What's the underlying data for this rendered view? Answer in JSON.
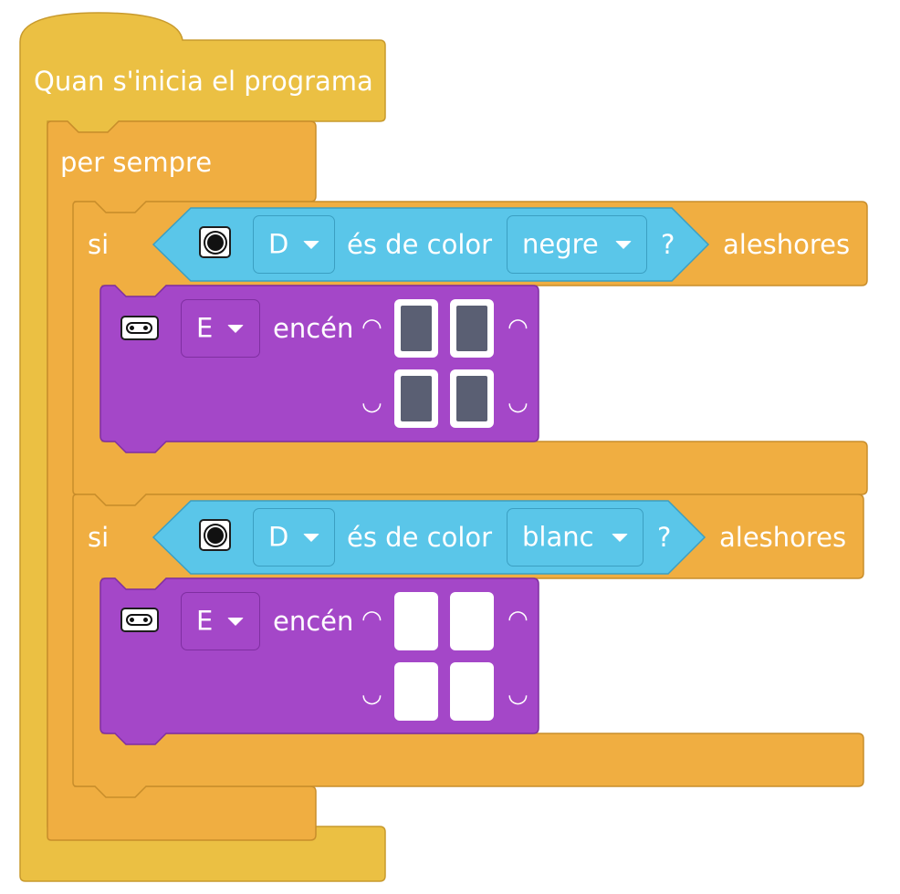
{
  "hat_label": "Quan s'inicia el programa",
  "forever_label": "per sempre",
  "if_blocks": [
    {
      "si_label": "si",
      "port": "D",
      "condition_label": "és de color",
      "color": "negre",
      "question": "?",
      "then_label": "aleshores",
      "action": {
        "port": "E",
        "action_label": "encén",
        "leds_on": [
          true,
          true,
          true,
          true
        ]
      }
    },
    {
      "si_label": "si",
      "port": "D",
      "condition_label": "és de color",
      "color": "blanc",
      "question": "?",
      "then_label": "aleshores",
      "action": {
        "port": "E",
        "action_label": "encén",
        "leds_on": [
          false,
          false,
          false,
          false
        ]
      }
    }
  ],
  "colors": {
    "events_yellow": "#EBC043",
    "control_orange": "#F0AE41",
    "sensor_cyan": "#5AC6E9",
    "light_purple": "#A447C8",
    "led_dark": "#5A5F73"
  },
  "icons": {
    "sensor": "color-sensor-icon",
    "eyes": "distance-sensor-eyes-icon"
  }
}
